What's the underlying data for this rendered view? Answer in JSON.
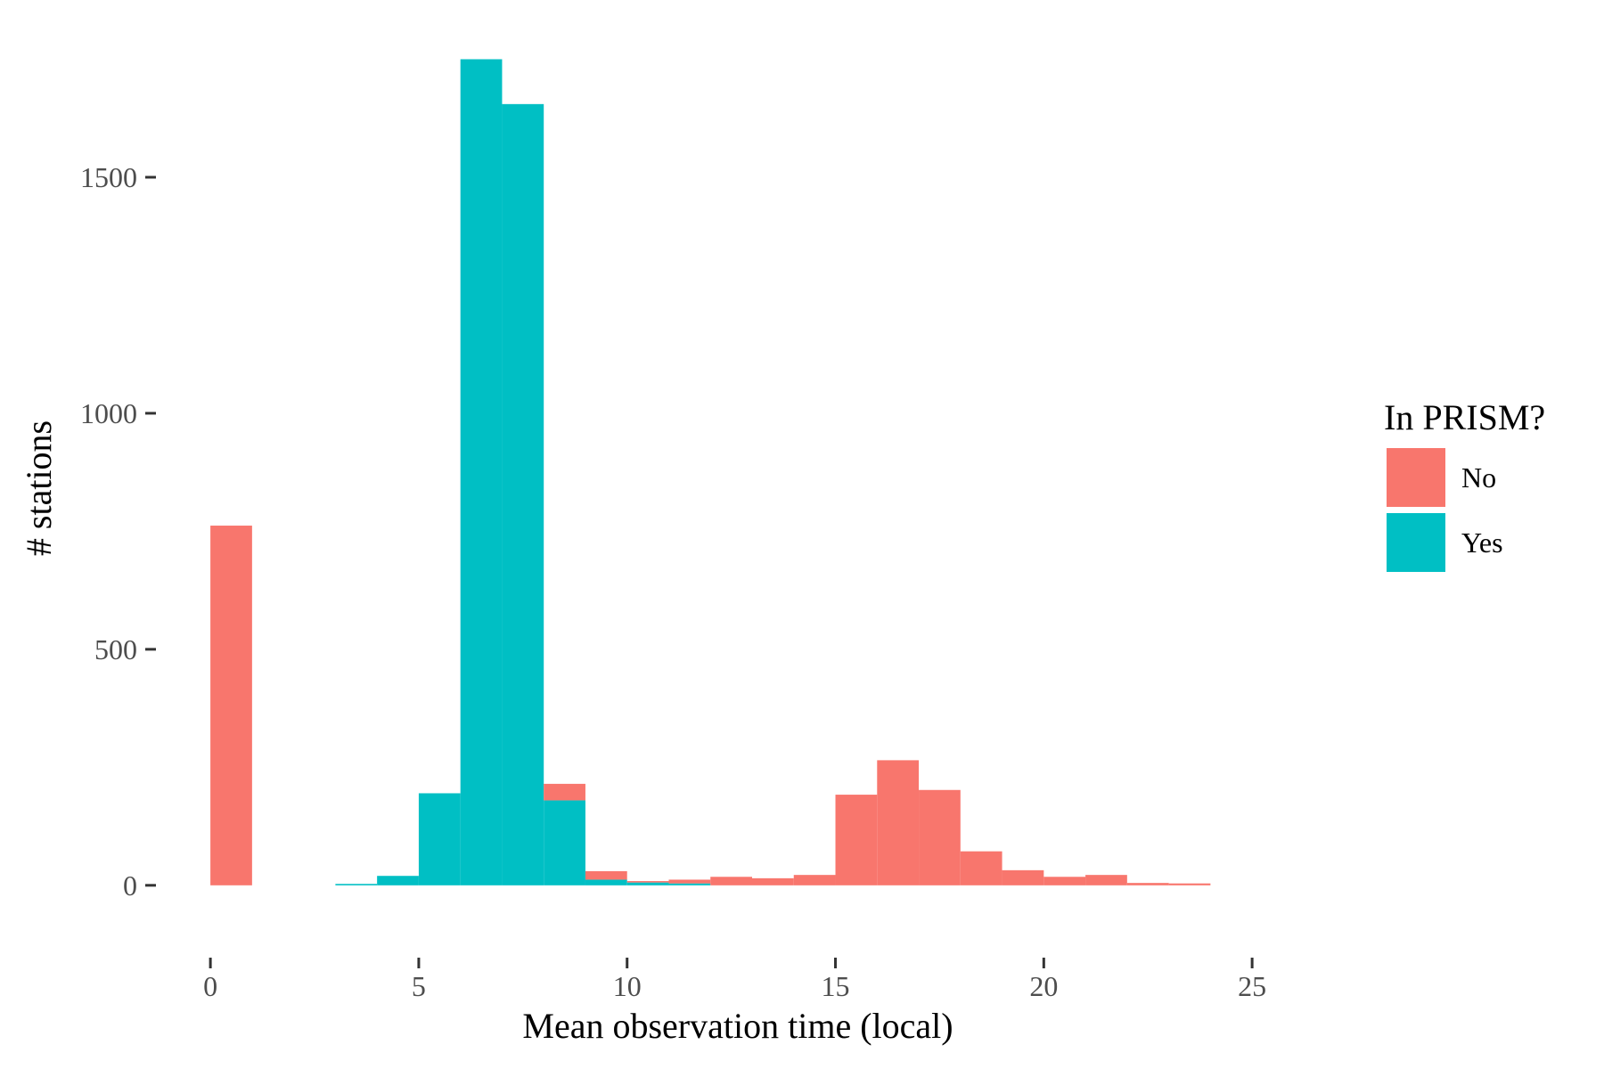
{
  "chart_data": {
    "type": "bar",
    "subtype": "stacked-histogram",
    "title": "",
    "xlabel": "Mean observation time (local)",
    "ylabel": "# stations",
    "xlim": [
      -1.2,
      27.2
    ],
    "ylim": [
      -140,
      1800
    ],
    "x_ticks": [
      0,
      5,
      10,
      15,
      20,
      25
    ],
    "x_tick_labels": [
      "0",
      "5",
      "10",
      "15",
      "20",
      "25"
    ],
    "y_ticks": [
      0,
      500,
      1000,
      1500
    ],
    "y_tick_labels": [
      "0",
      "500",
      "1000",
      "1500"
    ],
    "bin_width": 1,
    "bins": [
      0,
      1,
      2,
      3,
      4,
      5,
      6,
      7,
      8,
      9,
      10,
      11,
      12,
      13,
      14,
      15,
      16,
      17,
      18,
      19,
      20,
      21,
      22,
      23
    ],
    "grid": false,
    "legend": {
      "title": "In PRISM?",
      "position": "right",
      "entries": [
        {
          "label": "No",
          "color": "#F8766D"
        },
        {
          "label": "Yes",
          "color": "#00BFC4"
        }
      ]
    },
    "series": [
      {
        "name": "Yes",
        "color": "#00BFC4",
        "values": [
          0,
          0,
          0,
          3,
          20,
          195,
          1750,
          1655,
          180,
          12,
          6,
          4,
          0,
          0,
          0,
          0,
          0,
          0,
          0,
          0,
          0,
          0,
          0,
          0
        ]
      },
      {
        "name": "No",
        "color": "#F8766D",
        "values": [
          762,
          0,
          0,
          0,
          0,
          0,
          0,
          0,
          35,
          18,
          3,
          8,
          18,
          15,
          22,
          192,
          265,
          202,
          72,
          32,
          18,
          22,
          5,
          4
        ]
      }
    ]
  }
}
